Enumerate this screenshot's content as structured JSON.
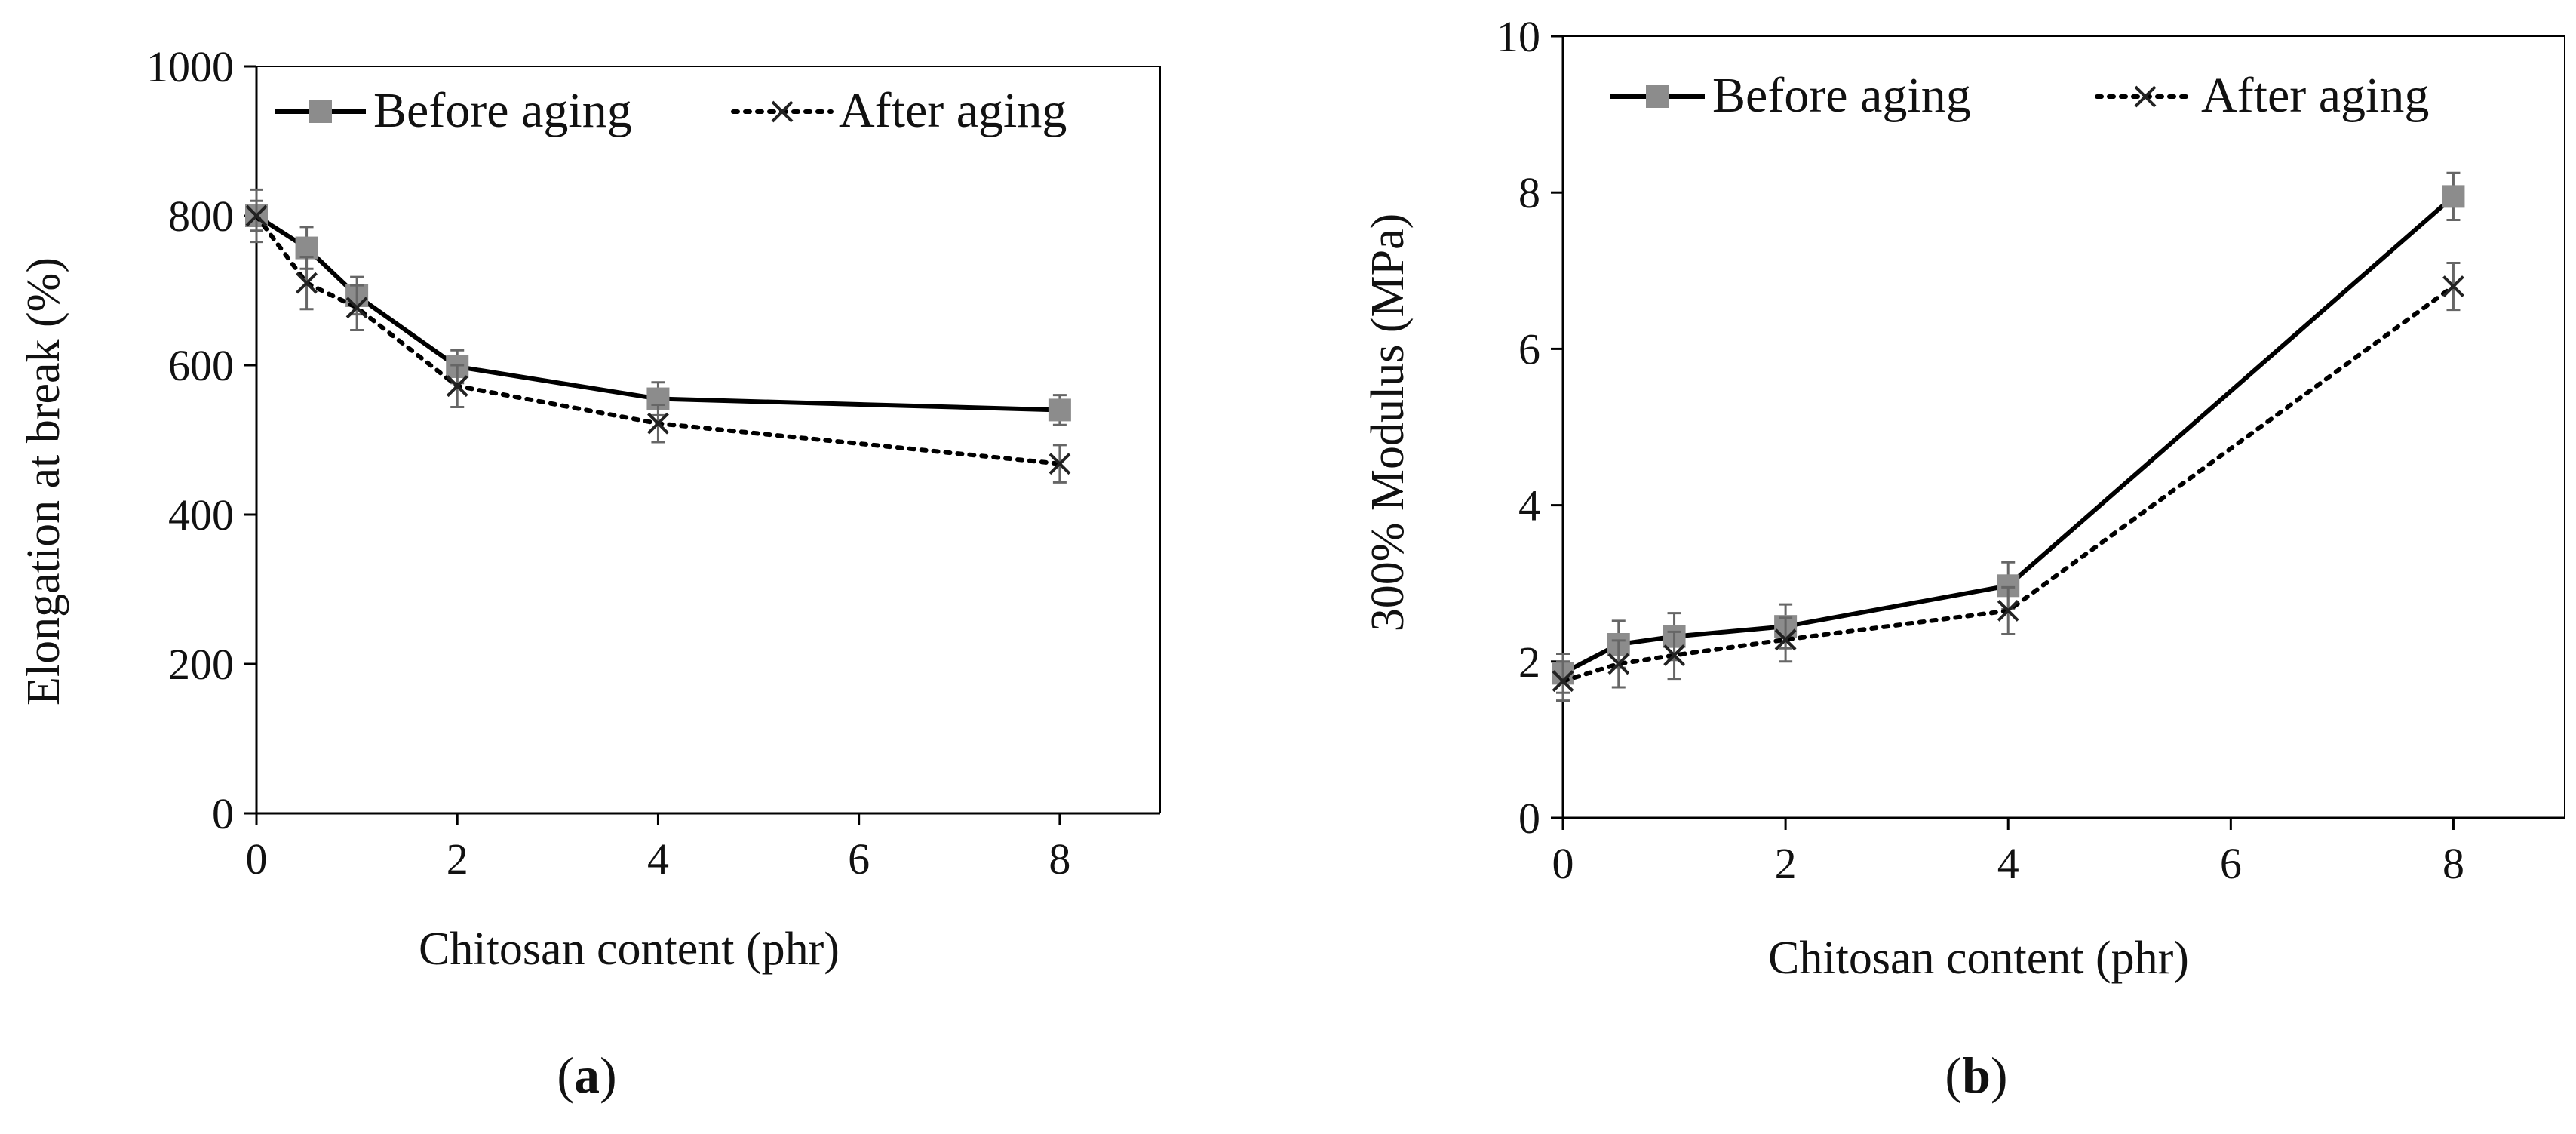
{
  "figure": {
    "panels": [
      {
        "open": "(",
        "letter": "a",
        "close": ")"
      },
      {
        "open": "(",
        "letter": "b",
        "close": ")"
      }
    ]
  },
  "colors": {
    "before_line": "#000000",
    "before_marker": "#8c8c8c",
    "after_line": "#000000",
    "axis": "#000000"
  },
  "chart_data": [
    {
      "type": "line",
      "panel": "a",
      "title": "",
      "xlabel": "Chitosan content (phr)",
      "ylabel": "Elongation at break (%)",
      "xlim": [
        0,
        9
      ],
      "ylim": [
        0,
        1000
      ],
      "xticks": [
        0,
        2,
        4,
        6,
        8
      ],
      "yticks": [
        0,
        200,
        400,
        600,
        800,
        1000
      ],
      "legend": "top",
      "x": [
        0,
        0.5,
        1,
        2,
        4,
        8
      ],
      "series": [
        {
          "name": "Before aging",
          "style": "solid-square",
          "values": [
            800,
            757,
            693,
            598,
            555,
            540
          ],
          "errors": [
            20,
            28,
            25,
            22,
            22,
            20
          ]
        },
        {
          "name": "After aging",
          "style": "dotted-cross",
          "values": [
            800,
            710,
            677,
            572,
            522,
            468
          ],
          "errors": [
            35,
            35,
            30,
            28,
            25,
            25
          ]
        }
      ]
    },
    {
      "type": "line",
      "panel": "b",
      "title": "",
      "xlabel": "Chitosan content (phr)",
      "ylabel": "300% Modulus (MPa)",
      "xlim": [
        0,
        9
      ],
      "ylim": [
        0,
        10
      ],
      "xticks": [
        0,
        2,
        4,
        6,
        8
      ],
      "yticks": [
        0,
        2,
        4,
        6,
        8,
        10
      ],
      "legend": "top",
      "x": [
        0,
        0.5,
        1,
        2,
        4,
        8
      ],
      "series": [
        {
          "name": "Before aging",
          "style": "solid-square",
          "values": [
            1.85,
            2.22,
            2.32,
            2.45,
            2.97,
            7.95
          ],
          "errors": [
            0.25,
            0.3,
            0.3,
            0.28,
            0.3,
            0.3
          ]
        },
        {
          "name": "After aging",
          "style": "dotted-cross",
          "values": [
            1.75,
            1.97,
            2.08,
            2.28,
            2.65,
            6.8
          ],
          "errors": [
            0.25,
            0.3,
            0.3,
            0.28,
            0.3,
            0.3
          ]
        }
      ]
    }
  ]
}
